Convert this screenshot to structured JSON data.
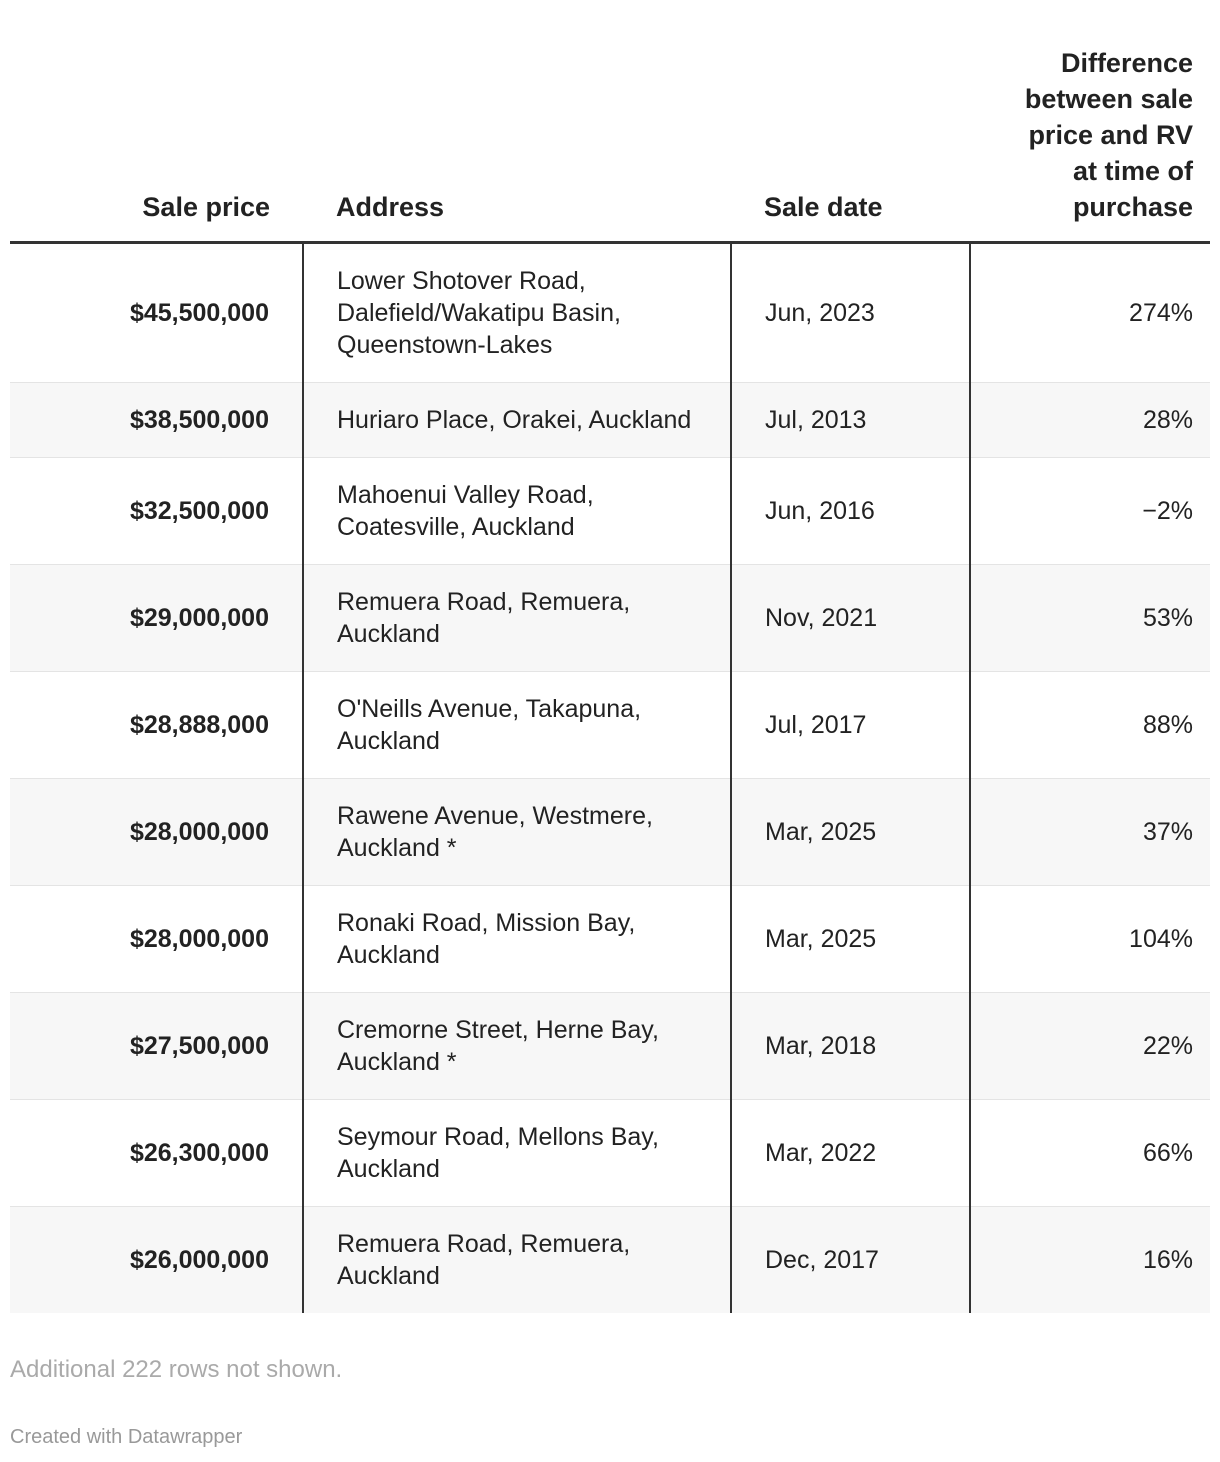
{
  "table": {
    "header": [
      "Sale price",
      "Address",
      "Sale date",
      "Difference between sale price and RV at time of purchase"
    ],
    "rows": [
      [
        "$45,500,000",
        "Lower Shotover Road, Dalefield/Wakatipu Basin, Queenstown-Lakes",
        "Jun, 2023",
        "274%"
      ],
      [
        "$38,500,000",
        "Huriaro Place, Orakei, Auckland",
        "Jul, 2013",
        "28%"
      ],
      [
        "$32,500,000",
        "Mahoenui Valley Road, Coatesville, Auckland",
        "Jun, 2016",
        "−2%"
      ],
      [
        "$29,000,000",
        "Remuera Road, Remuera, Auckland",
        "Nov, 2021",
        "53%"
      ],
      [
        "$28,888,000",
        "O'Neills Avenue, Takapuna, Auckland",
        "Jul, 2017",
        "88%"
      ],
      [
        "$28,000,000",
        "Rawene Avenue, Westmere, Auckland *",
        "Mar, 2025",
        "37%"
      ],
      [
        "$28,000,000",
        "Ronaki Road, Mission Bay, Auckland",
        "Mar, 2025",
        "104%"
      ],
      [
        "$27,500,000",
        "Cremorne Street, Herne Bay, Auckland *",
        "Mar, 2018",
        "22%"
      ],
      [
        "$26,300,000",
        "Seymour Road, Mellons Bay, Auckland",
        "Mar, 2022",
        "66%"
      ],
      [
        "$26,000,000",
        "Remuera Road, Remuera, Auckland",
        "Dec, 2017",
        "16%"
      ]
    ]
  },
  "footer": {
    "note": "Additional 222 rows not shown.",
    "credit": "Created with Datawrapper"
  }
}
